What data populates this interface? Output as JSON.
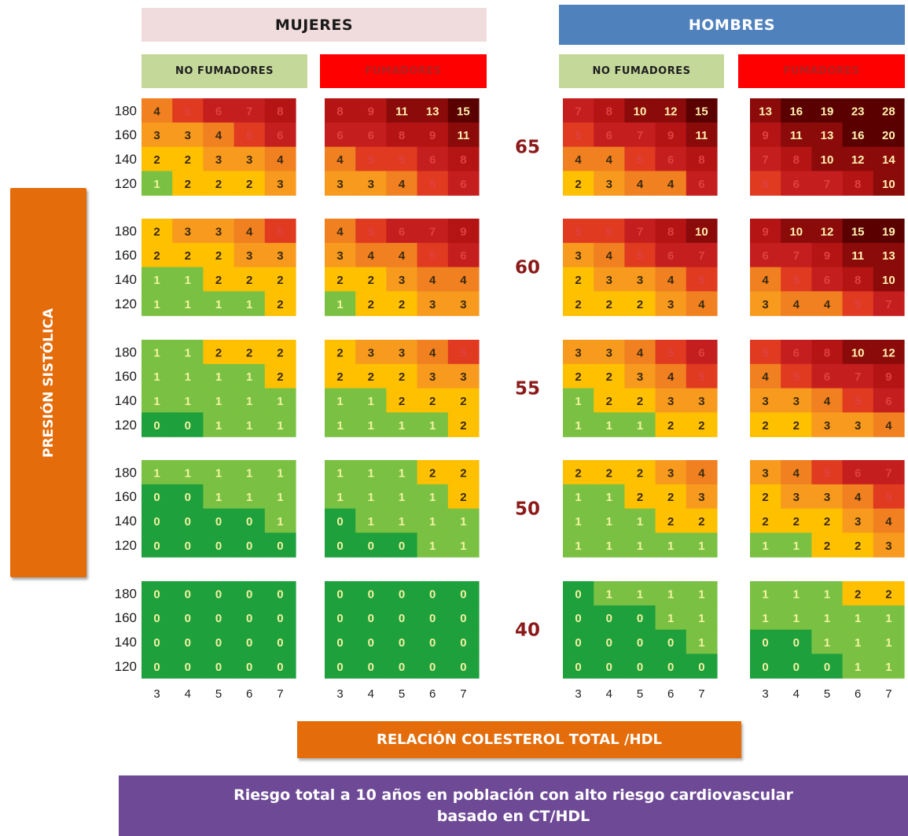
{
  "groups": {
    "women": "MUJERES",
    "men": "HOMBRES",
    "non_smokers": "NO FUMADORES",
    "smokers": "FUMADORES"
  },
  "y_label": "PRESIÓN SISTÓLICA",
  "x_label": "RELACIÓN COLESTEROL TOTAL /HDL",
  "caption": {
    "line1": "Riesgo total a 10 años en población con alto riesgo cardiovascular",
    "line2": "basado en CT/HDL"
  },
  "colors": {
    "risk_0": "#1ea03c",
    "risk_1": "#7ac143",
    "risk_2": "#ffc000",
    "risk_3": "#f79a1e",
    "risk_4": "#f08020",
    "risk_5": "#e03a20",
    "risk_6": "#c41e1e",
    "risk_8": "#b41414",
    "risk_10": "#8b0a0a",
    "risk_15": "#5a0000",
    "age_label": "#8b1a1a"
  },
  "chart_data": {
    "type": "heatmap",
    "x_ticks": [
      "3",
      "4",
      "5",
      "6",
      "7"
    ],
    "y_ticks": [
      "180",
      "160",
      "140",
      "120"
    ],
    "panel_order": [
      "Mujeres No fumadores",
      "Mujeres Fumadores",
      "Hombres No fumadores",
      "Hombres Fumadores"
    ],
    "age_groups": [
      {
        "age": "65",
        "panels": [
          [
            [
              4,
              5,
              6,
              7,
              8
            ],
            [
              3,
              3,
              4,
              5,
              6
            ],
            [
              2,
              2,
              3,
              3,
              4
            ],
            [
              1,
              2,
              2,
              2,
              3
            ]
          ],
          [
            [
              8,
              9,
              11,
              13,
              15
            ],
            [
              6,
              6,
              8,
              9,
              11
            ],
            [
              4,
              5,
              5,
              6,
              8
            ],
            [
              3,
              3,
              4,
              5,
              6
            ]
          ],
          [
            [
              7,
              8,
              10,
              12,
              15
            ],
            [
              5,
              6,
              7,
              9,
              11
            ],
            [
              4,
              4,
              5,
              6,
              8
            ],
            [
              2,
              3,
              4,
              4,
              6
            ]
          ],
          [
            [
              13,
              16,
              19,
              23,
              28
            ],
            [
              9,
              11,
              13,
              16,
              20
            ],
            [
              7,
              8,
              10,
              12,
              14
            ],
            [
              5,
              6,
              7,
              8,
              10
            ]
          ]
        ]
      },
      {
        "age": "60",
        "panels": [
          [
            [
              2,
              3,
              3,
              4,
              5
            ],
            [
              2,
              2,
              2,
              3,
              3
            ],
            [
              1,
              1,
              2,
              2,
              2
            ],
            [
              1,
              1,
              1,
              1,
              2
            ]
          ],
          [
            [
              4,
              5,
              6,
              7,
              9
            ],
            [
              3,
              4,
              4,
              5,
              6
            ],
            [
              2,
              2,
              3,
              4,
              4
            ],
            [
              1,
              2,
              2,
              3,
              3
            ]
          ],
          [
            [
              5,
              5,
              7,
              8,
              10
            ],
            [
              3,
              4,
              5,
              6,
              7
            ],
            [
              2,
              3,
              3,
              4,
              5
            ],
            [
              2,
              2,
              2,
              3,
              4
            ]
          ],
          [
            [
              9,
              10,
              12,
              15,
              19
            ],
            [
              6,
              7,
              9,
              11,
              13
            ],
            [
              4,
              5,
              6,
              8,
              10
            ],
            [
              3,
              4,
              4,
              5,
              7
            ]
          ]
        ]
      },
      {
        "age": "55",
        "panels": [
          [
            [
              1,
              1,
              2,
              2,
              2
            ],
            [
              1,
              1,
              1,
              1,
              2
            ],
            [
              1,
              1,
              1,
              1,
              1
            ],
            [
              0,
              0,
              1,
              1,
              1
            ]
          ],
          [
            [
              2,
              3,
              3,
              4,
              5
            ],
            [
              2,
              2,
              2,
              3,
              3
            ],
            [
              1,
              1,
              2,
              2,
              2
            ],
            [
              1,
              1,
              1,
              1,
              2
            ]
          ],
          [
            [
              3,
              3,
              4,
              5,
              6
            ],
            [
              2,
              2,
              3,
              4,
              5
            ],
            [
              1,
              2,
              2,
              3,
              3
            ],
            [
              1,
              1,
              1,
              2,
              2
            ]
          ],
          [
            [
              5,
              6,
              8,
              10,
              12
            ],
            [
              4,
              5,
              6,
              7,
              9
            ],
            [
              3,
              3,
              4,
              5,
              6
            ],
            [
              2,
              2,
              3,
              3,
              4
            ]
          ]
        ]
      },
      {
        "age": "50",
        "panels": [
          [
            [
              1,
              1,
              1,
              1,
              1
            ],
            [
              0,
              0,
              1,
              1,
              1
            ],
            [
              0,
              0,
              0,
              0,
              1
            ],
            [
              0,
              0,
              0,
              0,
              0
            ]
          ],
          [
            [
              1,
              1,
              1,
              2,
              2
            ],
            [
              1,
              1,
              1,
              1,
              2
            ],
            [
              0,
              1,
              1,
              1,
              1
            ],
            [
              0,
              0,
              0,
              1,
              1
            ]
          ],
          [
            [
              2,
              2,
              2,
              3,
              4
            ],
            [
              1,
              1,
              2,
              2,
              3
            ],
            [
              1,
              1,
              1,
              2,
              2
            ],
            [
              1,
              1,
              1,
              1,
              1
            ]
          ],
          [
            [
              3,
              4,
              5,
              6,
              7
            ],
            [
              2,
              3,
              3,
              4,
              5
            ],
            [
              2,
              2,
              2,
              3,
              4
            ],
            [
              1,
              1,
              2,
              2,
              3
            ]
          ]
        ]
      },
      {
        "age": "40",
        "panels": [
          [
            [
              0,
              0,
              0,
              0,
              0
            ],
            [
              0,
              0,
              0,
              0,
              0
            ],
            [
              0,
              0,
              0,
              0,
              0
            ],
            [
              0,
              0,
              0,
              0,
              0
            ]
          ],
          [
            [
              0,
              0,
              0,
              0,
              0
            ],
            [
              0,
              0,
              0,
              0,
              0
            ],
            [
              0,
              0,
              0,
              0,
              0
            ],
            [
              0,
              0,
              0,
              0,
              0
            ]
          ],
          [
            [
              0,
              1,
              1,
              1,
              1
            ],
            [
              0,
              0,
              0,
              1,
              1
            ],
            [
              0,
              0,
              0,
              0,
              1
            ],
            [
              0,
              0,
              0,
              0,
              0
            ]
          ],
          [
            [
              1,
              1,
              1,
              2,
              2
            ],
            [
              1,
              1,
              1,
              1,
              1
            ],
            [
              0,
              0,
              1,
              1,
              1
            ],
            [
              0,
              0,
              0,
              1,
              1
            ]
          ]
        ]
      }
    ]
  }
}
